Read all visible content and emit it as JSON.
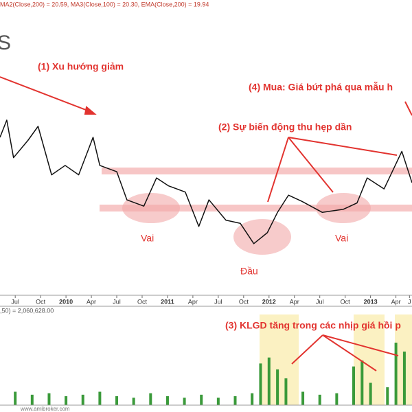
{
  "chart_data": {
    "type": "line",
    "header": "MA2(Close,200) = 20.59, MA3(Close,100) = 20.30, EMA(Close,200) = 19.94",
    "title": "S",
    "x": [
      -1.8,
      -1,
      -0.2,
      1.5,
      2.7,
      4.3,
      5.9,
      7.5,
      9.2,
      10,
      12,
      13.2,
      15.2,
      16.7,
      18.1,
      20.1,
      21.7,
      22.9,
      24.9,
      26.6,
      28.2,
      29.8,
      31,
      32.3,
      33.9,
      36.3,
      38.8,
      40.4,
      41.6,
      43.6,
      45.7,
      46.9
    ],
    "values": [
      22.1,
      23.2,
      20.8,
      21.9,
      22.8,
      19.7,
      20.3,
      19.7,
      22.1,
      20.3,
      19.9,
      18.1,
      17.7,
      19.5,
      19.0,
      18.6,
      16.4,
      18.1,
      16.8,
      16.6,
      15.3,
      16.0,
      17.3,
      18.4,
      18.0,
      17.3,
      17.5,
      17.9,
      19.5,
      18.8,
      21.2,
      19.2
    ],
    "color": "#111111",
    "xlim": [
      -1.8,
      46.9
    ],
    "ylim": [
      12,
      30
    ],
    "xticks": [
      {
        "value": 0,
        "label": "Jul"
      },
      {
        "value": 3,
        "label": "Oct"
      },
      {
        "value": 6,
        "label": "2010"
      },
      {
        "value": 9,
        "label": "Apr"
      },
      {
        "value": 12,
        "label": "Jul"
      },
      {
        "value": 15,
        "label": "Oct"
      },
      {
        "value": 18,
        "label": "2011"
      },
      {
        "value": 21,
        "label": "Apr"
      },
      {
        "value": 24,
        "label": "Jul"
      },
      {
        "value": 27,
        "label": "Oct"
      },
      {
        "value": 30,
        "label": "2012"
      },
      {
        "value": 33,
        "label": "Apr"
      },
      {
        "value": 36,
        "label": "Jul"
      },
      {
        "value": 39,
        "label": "Oct"
      },
      {
        "value": 42,
        "label": "2013"
      },
      {
        "value": 45,
        "label": "Apr"
      },
      {
        "value": 46.6,
        "label": "J"
      }
    ],
    "volume": {
      "header": ",50) = 2,060,628.00",
      "x": [
        0,
        2,
        4,
        6,
        8,
        10,
        12,
        14,
        16,
        18,
        20,
        22,
        24,
        26,
        28,
        29,
        30,
        31,
        32,
        34,
        36,
        38,
        40,
        41,
        42,
        44,
        45,
        46
      ],
      "values": [
        900000,
        700000,
        800000,
        600000,
        700000,
        900000,
        600000,
        500000,
        800000,
        600000,
        500000,
        700000,
        500000,
        600000,
        800000,
        2800000,
        3200000,
        2400000,
        1800000,
        900000,
        700000,
        800000,
        2600000,
        3000000,
        1500000,
        1200000,
        4200000,
        3600000
      ],
      "ylim": [
        0,
        6000000
      ],
      "color": "#3a9a3a"
    },
    "annotations": [
      "(1) Xu hướng giảm",
      "(4) Mua: Giá bứt phá qua mẫu h",
      "(2) Sự biến động thu hẹp dần",
      "Vai",
      "Đầu",
      "Vai",
      "(3) KLGD tăng trong các nhịp giá hồi p"
    ],
    "footer": "www.amibroker.com"
  }
}
